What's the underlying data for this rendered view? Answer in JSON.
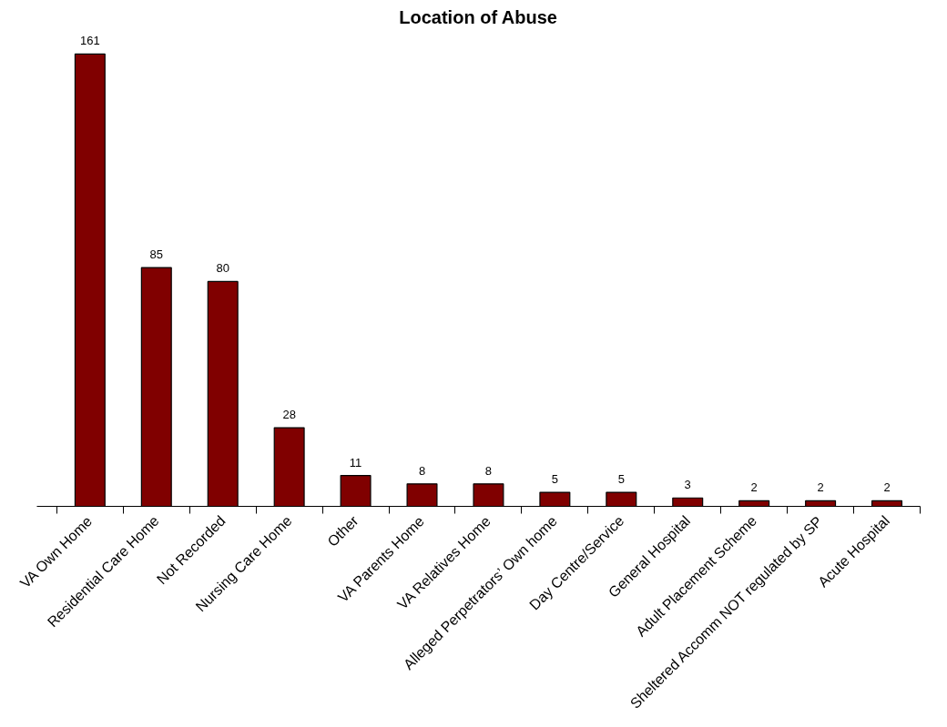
{
  "chart_data": {
    "type": "bar",
    "title": "Location of Abuse",
    "categories": [
      "VA Own Home",
      "Residential Care Home",
      "Not Recorded",
      "Nursing Care Home",
      "Other",
      "VA Parents Home",
      "VA Relatives Home",
      "Alleged Perpetrators’ Own home",
      "Day Centre/Service",
      "General Hospital",
      "Adult Placement Scheme",
      "Sheltered Accomm NOT regulated by SP",
      "Acute Hospital"
    ],
    "values": [
      161,
      85,
      80,
      28,
      11,
      8,
      8,
      5,
      5,
      3,
      2,
      2,
      2
    ],
    "color": "#800000",
    "data_labels": true
  }
}
